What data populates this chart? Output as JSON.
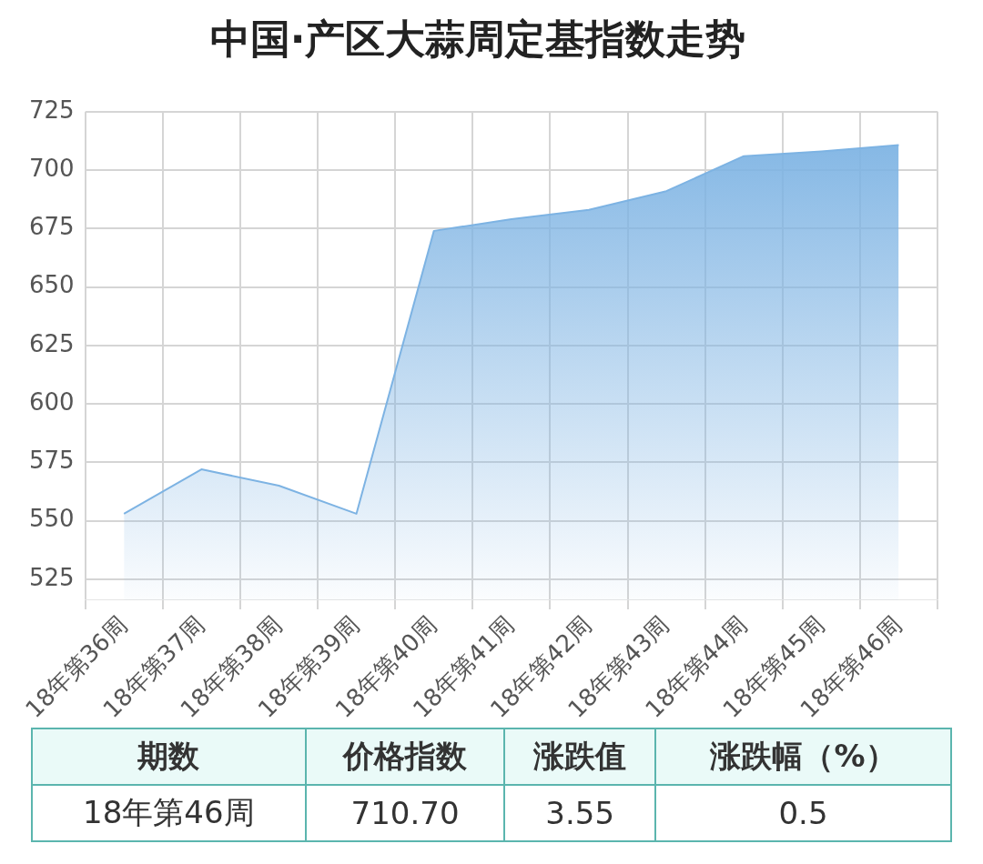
{
  "chart_data": {
    "type": "area",
    "title": "中国·产区大蒜周定基指数走势",
    "categories": [
      "18年第36周",
      "18年第37周",
      "18年第38周",
      "18年第39周",
      "18年第40周",
      "18年第41周",
      "18年第42周",
      "18年第43周",
      "18年第44周",
      "18年第45周",
      "18年第46周"
    ],
    "series": [
      {
        "color": "#7db3e3",
        "values": [
          553,
          572,
          565,
          553,
          674,
          679,
          683,
          691,
          706,
          708,
          710.7
        ]
      }
    ],
    "ylim": [
      516,
      725
    ],
    "yticks": [
      525,
      550,
      575,
      600,
      625,
      650,
      675,
      700,
      725
    ],
    "grid": true,
    "legend": false,
    "marker": "none",
    "line_style": "solid",
    "annotations": [
      "期数",
      "价格指数",
      "涨跌值",
      "涨跌幅（%）",
      "18年第46周",
      "710.70",
      "3.55",
      "0.5"
    ]
  }
}
